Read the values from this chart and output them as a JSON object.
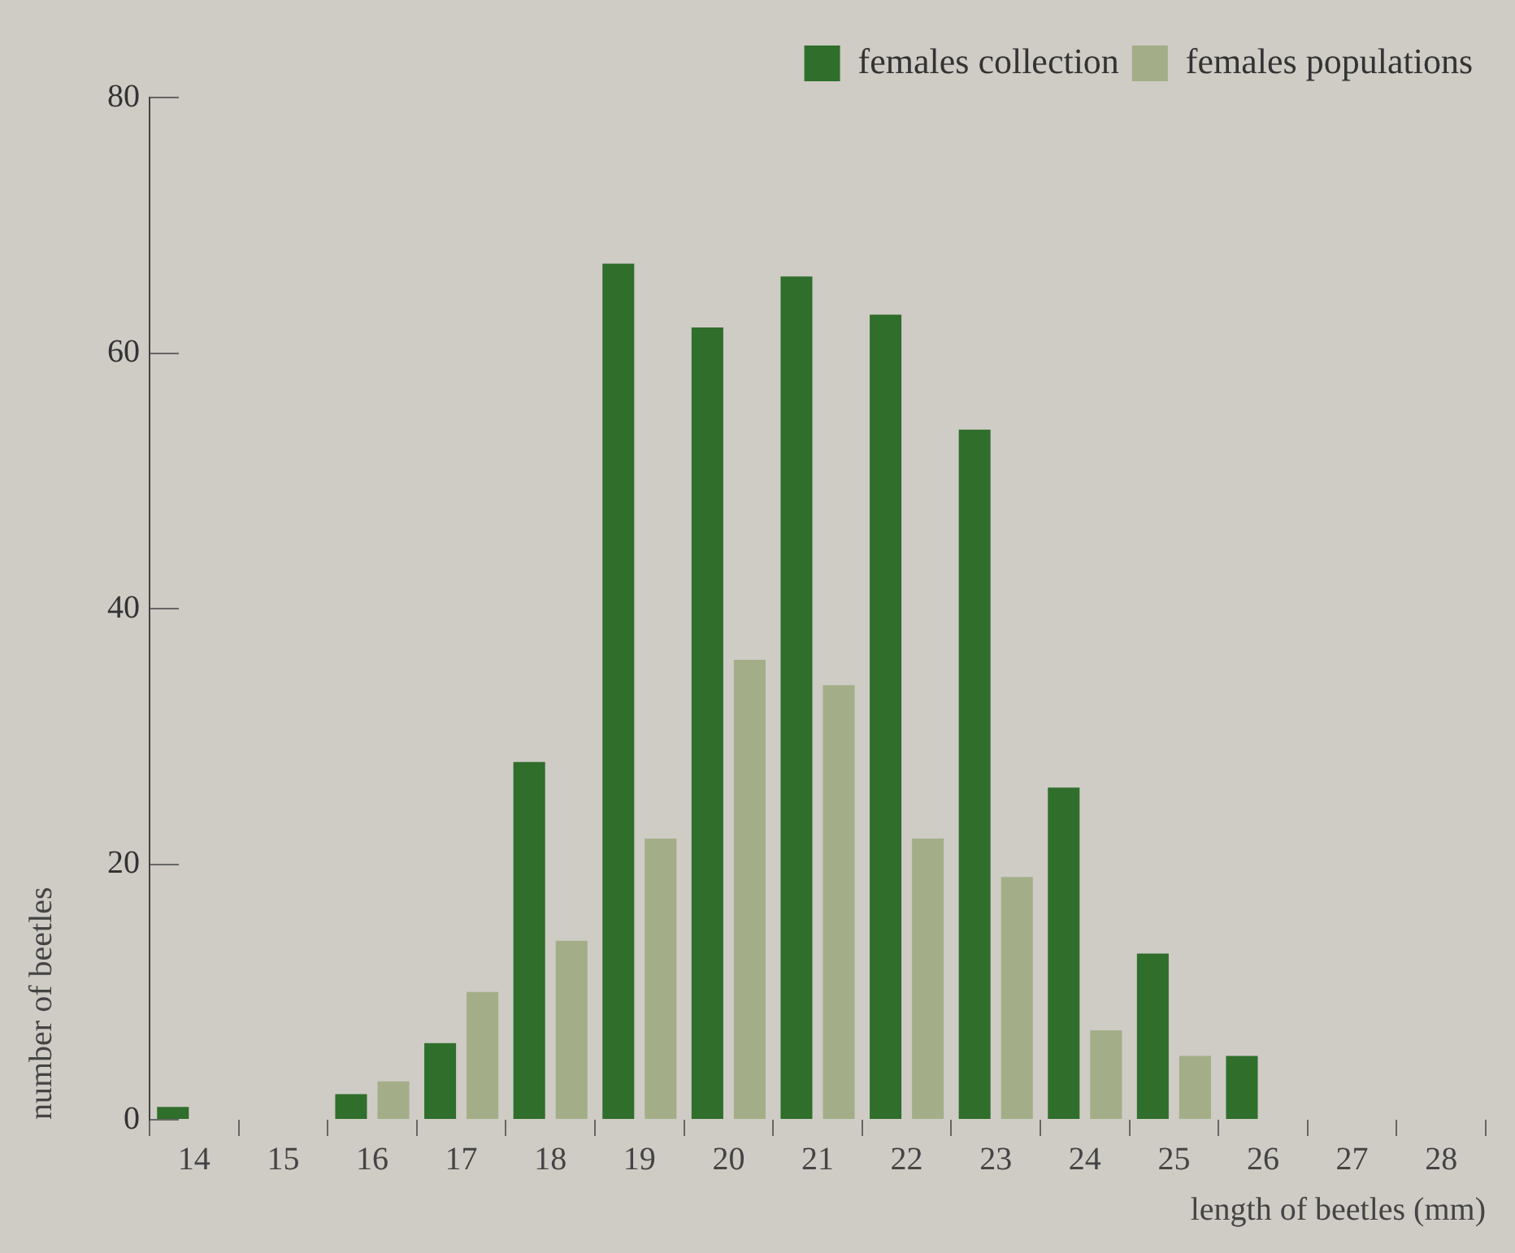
{
  "chart_data": {
    "type": "bar",
    "xlabel": "length of beetles (mm)",
    "ylabel": "number of beetles",
    "categories": [
      "14",
      "15",
      "16",
      "17",
      "18",
      "19",
      "20",
      "21",
      "22",
      "23",
      "24",
      "25",
      "26",
      "27",
      "28"
    ],
    "series": [
      {
        "name": "females collection",
        "color": "#2f6e2b",
        "values": [
          1,
          0,
          2,
          6,
          28,
          67,
          62,
          66,
          63,
          54,
          26,
          13,
          5,
          0,
          0
        ]
      },
      {
        "name": "females populations",
        "color": "#a3ae88",
        "values": [
          0,
          0,
          3,
          10,
          14,
          22,
          36,
          34,
          22,
          19,
          7,
          5,
          0,
          0,
          0
        ]
      }
    ],
    "ylim": [
      0,
      80
    ],
    "yticks": [
      0,
      20,
      40,
      60,
      80
    ],
    "grid": false,
    "legend": "top right"
  }
}
